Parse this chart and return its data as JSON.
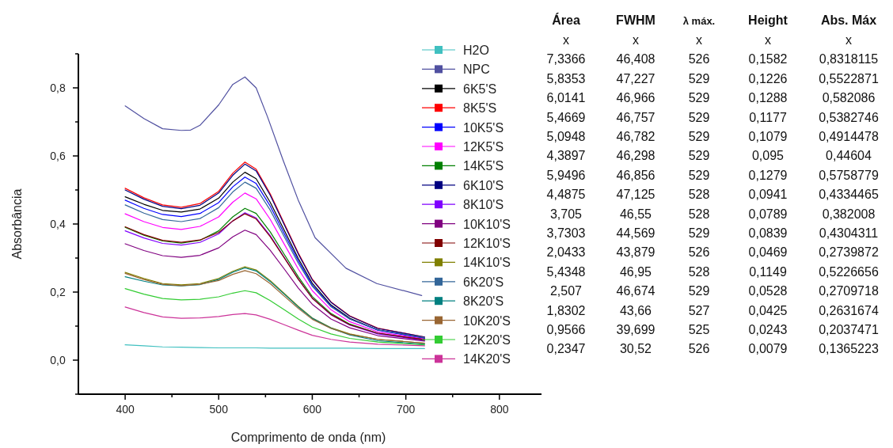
{
  "chart_data": {
    "type": "line",
    "xlabel": "Comprimento de onda (nm)",
    "ylabel": "Absorbância",
    "xlim": [
      350,
      845
    ],
    "ylim": [
      -0.1,
      0.9
    ],
    "xticks": [
      400,
      {
        "value": 450,
        "label": null
      },
      500,
      {
        "value": 550,
        "label": null
      },
      600,
      {
        "value": 650,
        "label": null
      },
      700,
      {
        "value": 750,
        "label": null
      },
      800
    ],
    "yticks": [
      {
        "value": -0.1,
        "label": null
      },
      {
        "value": 0,
        "label": "0,0"
      },
      {
        "value": 0.1,
        "label": null
      },
      {
        "value": 0.2,
        "label": "0,2"
      },
      {
        "value": 0.3,
        "label": null
      },
      {
        "value": 0.4,
        "label": "0,4"
      },
      {
        "value": 0.5,
        "label": null
      },
      {
        "value": 0.6,
        "label": "0,6"
      },
      {
        "value": 0.7,
        "label": null
      },
      {
        "value": 0.8,
        "label": "0,8"
      },
      {
        "value": 0.9,
        "label": null
      }
    ],
    "legend": "right",
    "grid": false,
    "line_style": "solid",
    "x": [
      400,
      420,
      440,
      460,
      480,
      500,
      515,
      528,
      540,
      555,
      570,
      585,
      600,
      620,
      640,
      670,
      720
    ],
    "series": [
      {
        "name": "H2O",
        "color": "#40c0c0",
        "values": [
          0.045,
          0.042,
          0.039,
          0.038,
          0.037,
          0.036,
          0.036,
          0.036,
          0.036,
          0.035,
          0.035,
          0.035,
          0.035,
          0.035,
          0.035,
          0.034,
          0.034
        ]
      },
      {
        "name": "NPC",
        "color": "#5050a0",
        "x": [
          400,
          420,
          440,
          460,
          470,
          480,
          500,
          515,
          528,
          540,
          552,
          569,
          585,
          603,
          636,
          669,
          717
        ],
        "values": [
          0.747,
          0.71,
          0.68,
          0.675,
          0.676,
          0.69,
          0.75,
          0.81,
          0.832,
          0.8,
          0.716,
          0.586,
          0.47,
          0.36,
          0.27,
          0.225,
          0.19
        ]
      },
      {
        "name": "6K5'S",
        "color": "#000000",
        "values": [
          0.48,
          0.458,
          0.44,
          0.435,
          0.444,
          0.476,
          0.523,
          0.552,
          0.533,
          0.464,
          0.382,
          0.299,
          0.226,
          0.162,
          0.123,
          0.089,
          0.065
        ]
      },
      {
        "name": "8K5'S",
        "color": "#ff0000",
        "values": [
          0.505,
          0.477,
          0.456,
          0.449,
          0.46,
          0.496,
          0.549,
          0.582,
          0.561,
          0.489,
          0.402,
          0.315,
          0.238,
          0.171,
          0.13,
          0.094,
          0.068
        ]
      },
      {
        "name": "10K5'S",
        "color": "#0000ff",
        "values": [
          0.47,
          0.446,
          0.428,
          0.422,
          0.431,
          0.463,
          0.509,
          0.538,
          0.519,
          0.453,
          0.372,
          0.292,
          0.22,
          0.159,
          0.121,
          0.088,
          0.064
        ]
      },
      {
        "name": "12K5'S",
        "color": "#ff00ff",
        "values": [
          0.43,
          0.407,
          0.39,
          0.384,
          0.393,
          0.421,
          0.464,
          0.491,
          0.474,
          0.414,
          0.341,
          0.268,
          0.204,
          0.148,
          0.113,
          0.083,
          0.062
        ]
      },
      {
        "name": "14K5'S",
        "color": "#008000",
        "values": [
          0.39,
          0.367,
          0.35,
          0.344,
          0.352,
          0.38,
          0.421,
          0.446,
          0.431,
          0.377,
          0.311,
          0.245,
          0.187,
          0.137,
          0.106,
          0.079,
          0.06
        ]
      },
      {
        "name": "6K10'S",
        "color": "#000080",
        "values": [
          0.5,
          0.473,
          0.452,
          0.445,
          0.455,
          0.491,
          0.543,
          0.576,
          0.556,
          0.485,
          0.398,
          0.312,
          0.236,
          0.17,
          0.129,
          0.093,
          0.068
        ]
      },
      {
        "name": "8K10'S",
        "color": "#8000ff",
        "values": [
          0.38,
          0.359,
          0.343,
          0.338,
          0.346,
          0.371,
          0.409,
          0.433,
          0.418,
          0.366,
          0.302,
          0.238,
          0.182,
          0.133,
          0.103,
          0.077,
          0.058
        ]
      },
      {
        "name": "10K10'S",
        "color": "#800080",
        "values": [
          0.342,
          0.322,
          0.307,
          0.302,
          0.308,
          0.33,
          0.362,
          0.382,
          0.369,
          0.323,
          0.268,
          0.212,
          0.164,
          0.121,
          0.095,
          0.072,
          0.056
        ]
      },
      {
        "name": "12K10'S",
        "color": "#800000",
        "values": [
          0.392,
          0.369,
          0.352,
          0.346,
          0.353,
          0.375,
          0.409,
          0.43,
          0.415,
          0.363,
          0.301,
          0.238,
          0.182,
          0.134,
          0.104,
          0.079,
          0.06
        ]
      },
      {
        "name": "14K10'S",
        "color": "#808000",
        "values": [
          0.258,
          0.24,
          0.225,
          0.221,
          0.225,
          0.24,
          0.261,
          0.274,
          0.265,
          0.234,
          0.196,
          0.158,
          0.124,
          0.095,
          0.077,
          0.061,
          0.05
        ]
      },
      {
        "name": "6K20'S",
        "color": "#336699",
        "values": [
          0.456,
          0.432,
          0.413,
          0.407,
          0.416,
          0.448,
          0.494,
          0.523,
          0.505,
          0.441,
          0.363,
          0.285,
          0.217,
          0.157,
          0.121,
          0.089,
          0.066
        ]
      },
      {
        "name": "8K20'S",
        "color": "#008080",
        "values": [
          0.245,
          0.232,
          0.221,
          0.218,
          0.222,
          0.237,
          0.258,
          0.271,
          0.262,
          0.231,
          0.194,
          0.156,
          0.123,
          0.094,
          0.074,
          0.057,
          0.047
        ]
      },
      {
        "name": "10K20'S",
        "color": "#996633",
        "values": [
          0.255,
          0.237,
          0.223,
          0.219,
          0.223,
          0.234,
          0.252,
          0.263,
          0.254,
          0.225,
          0.188,
          0.152,
          0.12,
          0.093,
          0.076,
          0.061,
          0.05
        ]
      },
      {
        "name": "12K20'S",
        "color": "#33cc33",
        "values": [
          0.21,
          0.194,
          0.181,
          0.177,
          0.179,
          0.186,
          0.197,
          0.204,
          0.198,
          0.175,
          0.148,
          0.121,
          0.097,
          0.077,
          0.064,
          0.053,
          0.045
        ]
      },
      {
        "name": "14K20'S",
        "color": "#cc3399",
        "values": [
          0.156,
          0.14,
          0.127,
          0.123,
          0.124,
          0.128,
          0.134,
          0.137,
          0.133,
          0.12,
          0.104,
          0.088,
          0.073,
          0.061,
          0.053,
          0.047,
          0.042
        ]
      }
    ],
    "annotations": [
      "Área",
      "FWHM",
      "λ máx.",
      "Height",
      "Abs. Máx",
      "x",
      "x",
      "x",
      "x",
      "x",
      "7,3366",
      "46,408",
      "526",
      "0,1582",
      "0,8318115",
      "5,8353",
      "47,227",
      "529",
      "0,1226",
      "0,5522871",
      "6,0141",
      "46,966",
      "529",
      "0,1288",
      "0,582086",
      "5,4669",
      "46,757",
      "529",
      "0,1177",
      "0,5382746",
      "5,0948",
      "46,782",
      "529",
      "0,1079",
      "0,4914478",
      "4,3897",
      "46,298",
      "529",
      "0,095",
      "0,44604",
      "5,9496",
      "46,856",
      "529",
      "0,1279",
      "0,5758779",
      "4,4875",
      "47,125",
      "528",
      "0,0941",
      "0,4334465",
      "3,705",
      "46,55",
      "528",
      "0,0789",
      "0,382008",
      "3,7303",
      "44,569",
      "529",
      "0,0839",
      "0,4304311",
      "2,0433",
      "43,879",
      "526",
      "0,0469",
      "0,2739872",
      "5,4348",
      "46,95",
      "528",
      "0,1149",
      "0,5226656",
      "2,507",
      "46,674",
      "529",
      "0,0528",
      "0,2709718",
      "1,8302",
      "43,66",
      "527",
      "0,0425",
      "0,2631674",
      "0,9566",
      "39,699",
      "525",
      "0,0243",
      "0,2037471",
      "0,2347",
      "30,52",
      "526",
      "0,0079",
      "0,1365223"
    ]
  }
}
